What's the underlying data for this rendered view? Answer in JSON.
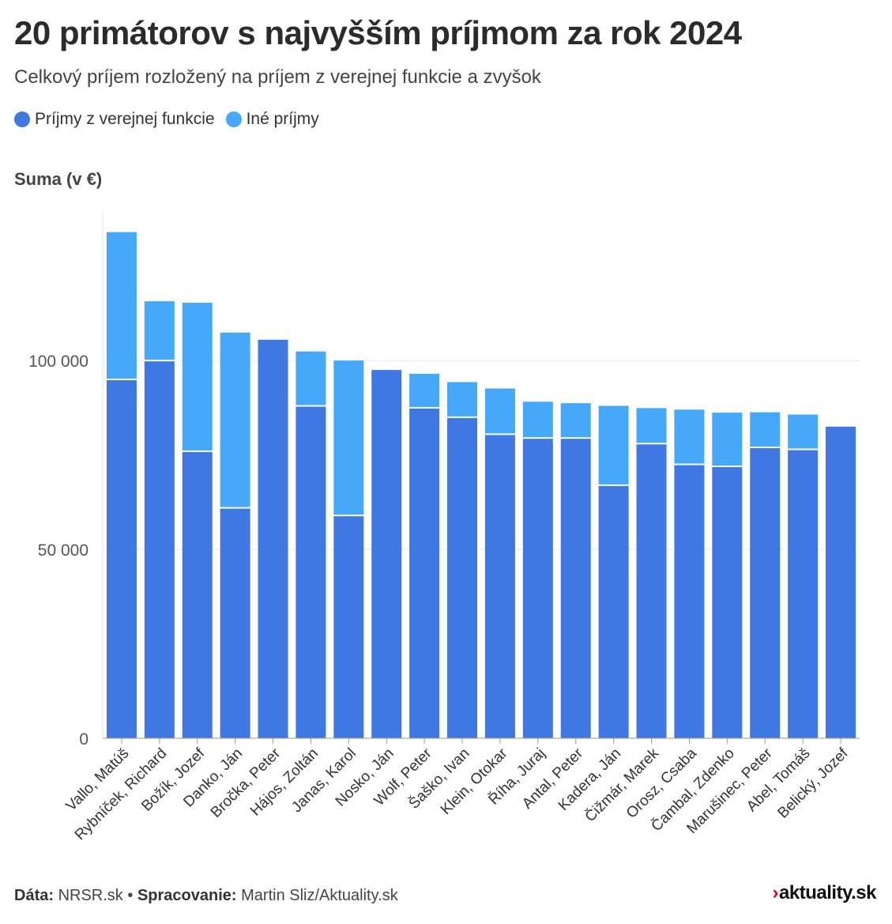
{
  "colors": {
    "public": "#3f78e3",
    "other": "#46a8f8",
    "axis": "#999999",
    "grid": "#e6e6e6"
  },
  "legend_labels": {
    "public": "Príjmy z verejnej funkcie",
    "other": "Iné príjmy"
  },
  "footer": {
    "data_label": "Dáta:",
    "data_value": "NRSR.sk",
    "separator": "•",
    "processing_label": "Spracovanie:",
    "processing_value": "Martin Sliz/Aktuality.sk"
  },
  "logo": {
    "mark": "›",
    "text": "aktuality.sk"
  },
  "chart_data": {
    "type": "bar",
    "stacked": true,
    "title": "20 primátorov s najvyšším príjmom za rok 2024",
    "subtitle": "Celkový príjem rozložený na príjem z verejnej funkcie a zvyšok",
    "ylabel": "Suma (v €)",
    "ylim": [
      0,
      140000
    ],
    "yticks": [
      0,
      50000,
      100000
    ],
    "ytick_labels": [
      "0",
      "50 000",
      "100 000"
    ],
    "grid": "horizontal",
    "legend_position": "top-left",
    "categories": [
      "Vallo, Matúš",
      "Rybníček, Richard",
      "Božík, Jozef",
      "Danko, Ján",
      "Bročka, Peter",
      "Hájos, Zoltán",
      "Janas, Karol",
      "Nosko, Ján",
      "Wolf, Peter",
      "Šaško, Ivan",
      "Klein, Otokar",
      "Říha, Juraj",
      "Antal, Peter",
      "Kadera, Ján",
      "Čižmár, Marek",
      "Orosz, Csaba",
      "Čambal, Zdenko",
      "Marušinec, Peter",
      "Abel, Tomáš",
      "Belický, Jozef"
    ],
    "series": [
      {
        "name": "Príjmy z verejnej funkcie",
        "values": [
          95000,
          100000,
          76000,
          61000,
          105500,
          88000,
          59000,
          97500,
          87500,
          85000,
          80500,
          79500,
          79500,
          67000,
          78000,
          72500,
          72000,
          77000,
          76500,
          82500
        ]
      },
      {
        "name": "Iné príjmy",
        "values": [
          39000,
          15700,
          39300,
          46400,
          0,
          14400,
          41000,
          0,
          9000,
          9300,
          12100,
          9600,
          9200,
          21000,
          9400,
          14500,
          14200,
          9300,
          9200,
          0
        ]
      }
    ]
  }
}
